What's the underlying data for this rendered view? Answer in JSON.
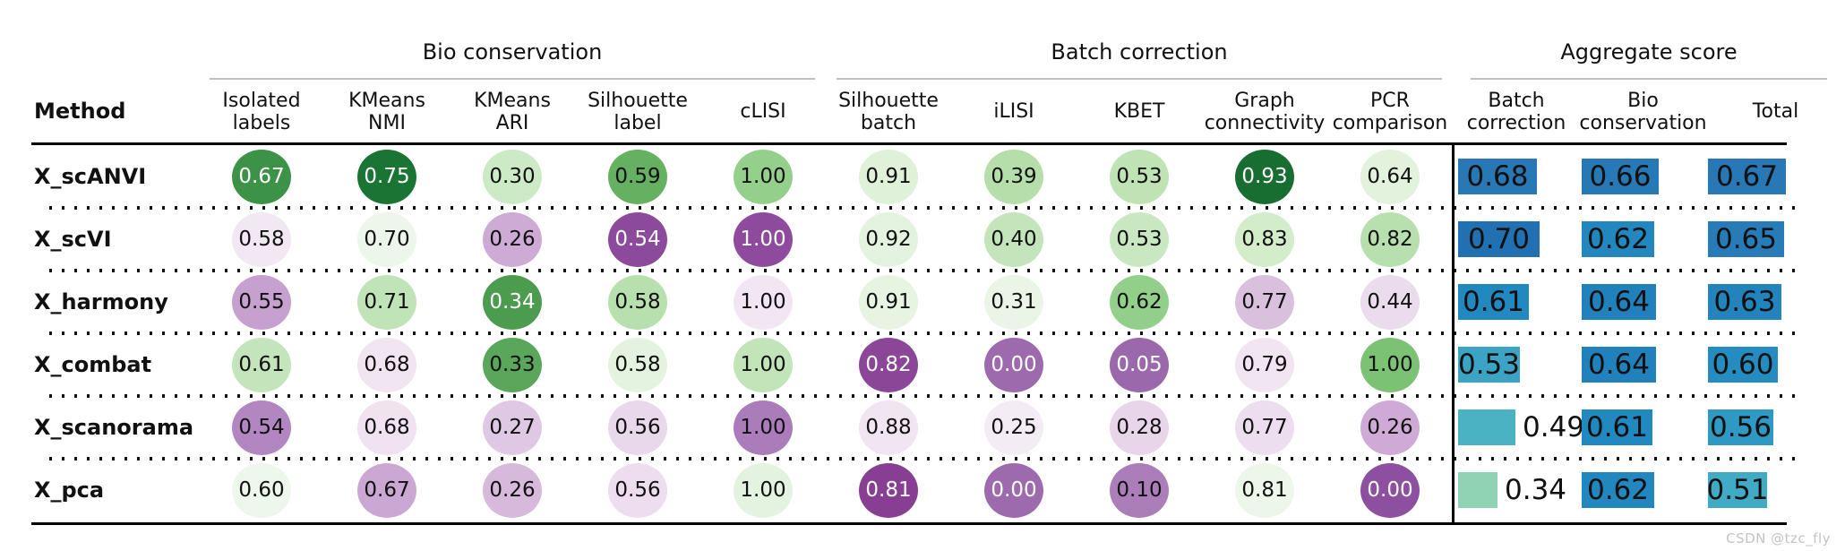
{
  "watermark": "CSDN @tzc_fly",
  "header": {
    "method": "Method",
    "group_labels": [
      "Bio conservation",
      "Batch correction",
      "Aggregate score"
    ],
    "metric_columns": [
      "Isolated\nlabels",
      "KMeans\nNMI",
      "KMeans\nARI",
      "Silhouette\nlabel",
      "cLISI",
      "Silhouette\nbatch",
      "iLISI",
      "KBET",
      "Graph\nconnectivity",
      "PCR\ncomparison"
    ],
    "aggregate_columns": [
      "Batch\ncorrection",
      "Bio\nconservation",
      "Total"
    ]
  },
  "chart_data": {
    "type": "table",
    "title": "scIB integration benchmark results",
    "column_groups": [
      {
        "label": "Bio conservation",
        "columns": [
          "Isolated labels",
          "KMeans NMI",
          "KMeans ARI",
          "Silhouette label",
          "cLISI"
        ]
      },
      {
        "label": "Batch correction",
        "columns": [
          "Silhouette batch",
          "iLISI",
          "KBET",
          "Graph connectivity",
          "PCR comparison"
        ]
      },
      {
        "label": "Aggregate score",
        "columns": [
          "Batch correction",
          "Bio conservation",
          "Total"
        ]
      }
    ],
    "methods": [
      "X_scANVI",
      "X_scVI",
      "X_harmony",
      "X_combat",
      "X_scanorama",
      "X_pca"
    ],
    "series": [
      {
        "method": "X_scANVI",
        "metrics": [
          0.67,
          0.75,
          0.3,
          0.59,
          1.0,
          0.91,
          0.39,
          0.53,
          0.93,
          0.64
        ],
        "aggregates": [
          0.68,
          0.66,
          0.67
        ]
      },
      {
        "method": "X_scVI",
        "metrics": [
          0.58,
          0.7,
          0.26,
          0.54,
          1.0,
          0.92,
          0.4,
          0.53,
          0.83,
          0.82
        ],
        "aggregates": [
          0.7,
          0.62,
          0.65
        ]
      },
      {
        "method": "X_harmony",
        "metrics": [
          0.55,
          0.71,
          0.34,
          0.58,
          1.0,
          0.91,
          0.31,
          0.62,
          0.77,
          0.44
        ],
        "aggregates": [
          0.61,
          0.64,
          0.63
        ]
      },
      {
        "method": "X_combat",
        "metrics": [
          0.61,
          0.68,
          0.33,
          0.58,
          1.0,
          0.82,
          0.0,
          0.05,
          0.79,
          1.0
        ],
        "aggregates": [
          0.53,
          0.64,
          0.6
        ]
      },
      {
        "method": "X_scanorama",
        "metrics": [
          0.54,
          0.68,
          0.27,
          0.56,
          1.0,
          0.88,
          0.25,
          0.28,
          0.77,
          0.26
        ],
        "aggregates": [
          0.49,
          0.61,
          0.56
        ]
      },
      {
        "method": "X_pca",
        "metrics": [
          0.6,
          0.67,
          0.26,
          0.56,
          1.0,
          0.81,
          0.0,
          0.1,
          0.81,
          0.0
        ],
        "aggregates": [
          0.34,
          0.62,
          0.51
        ]
      }
    ]
  },
  "styles": {
    "circle_colors": [
      [
        "#3c9347",
        "#1a7534",
        "#cdeac6",
        "#66b061",
        "#94d08c",
        "#e0f1da",
        "#b5deab",
        "#bfe3b5",
        "#186e31",
        "#e2f2dc"
      ],
      [
        "#f2e8f3",
        "#edf6ea",
        "#cdabd4",
        "#8c4a9c",
        "#8e4b9e",
        "#e4f3df",
        "#c4e5bb",
        "#c9e7c0",
        "#d3ecca",
        "#b7e0ae"
      ],
      [
        "#c6a0cf",
        "#c0e3b7",
        "#4c9c50",
        "#b7e0ae",
        "#f1e6f2",
        "#e7f4e2",
        "#ebf5e7",
        "#92cf8a",
        "#d9c1de",
        "#eadcec"
      ],
      [
        "#c4e5bb",
        "#f1e5f2",
        "#5aa75c",
        "#e4f3df",
        "#c2e4b9",
        "#8b4697",
        "#9c6aad",
        "#9b68ab",
        "#f1e5f2",
        "#7cc275"
      ],
      [
        "#b286c1",
        "#f0e2f1",
        "#dfc8e3",
        "#e9d7eb",
        "#aa7cba",
        "#f1e5f2",
        "#f4ecf5",
        "#e8d5ea",
        "#ecdeee",
        "#cfaad6"
      ],
      [
        "#eef7eb",
        "#cba8d3",
        "#d7b9dc",
        "#eeddef",
        "#e4f3df",
        "#873e93",
        "#9c6aad",
        "#ab7eba",
        "#ecf6e9",
        "#8d4f9f"
      ]
    ],
    "circle_text_colors": [
      [
        "#ffffff",
        "#ffffff",
        "#111111",
        "#111111",
        "#111111",
        "#111111",
        "#111111",
        "#111111",
        "#ffffff",
        "#111111"
      ],
      [
        "#111111",
        "#111111",
        "#111111",
        "#ffffff",
        "#ffffff",
        "#111111",
        "#111111",
        "#111111",
        "#111111",
        "#111111"
      ],
      [
        "#111111",
        "#111111",
        "#ffffff",
        "#111111",
        "#111111",
        "#111111",
        "#111111",
        "#111111",
        "#111111",
        "#111111"
      ],
      [
        "#111111",
        "#111111",
        "#111111",
        "#111111",
        "#111111",
        "#ffffff",
        "#ffffff",
        "#ffffff",
        "#111111",
        "#111111"
      ],
      [
        "#111111",
        "#111111",
        "#111111",
        "#111111",
        "#111111",
        "#111111",
        "#111111",
        "#111111",
        "#111111",
        "#111111"
      ],
      [
        "#111111",
        "#111111",
        "#111111",
        "#111111",
        "#111111",
        "#ffffff",
        "#ffffff",
        "#111111",
        "#111111",
        "#ffffff"
      ]
    ],
    "bar_colors": [
      [
        "#2778b5",
        "#2779b6",
        "#2778b5"
      ],
      [
        "#2171b2",
        "#2286bf",
        "#277cb8"
      ],
      [
        "#2289c0",
        "#2181bc",
        "#2283bd"
      ],
      [
        "#3ba4c5",
        "#2181bc",
        "#248cc0"
      ],
      [
        "#4bb2c3",
        "#2289c0",
        "#2f99c3"
      ],
      [
        "#90d3b4",
        "#2286bf",
        "#41abc5"
      ]
    ],
    "bar_label_pos": [
      [
        "in",
        "in",
        "in"
      ],
      [
        "in",
        "in",
        "in"
      ],
      [
        "in",
        "in",
        "in"
      ],
      [
        "in",
        "in",
        "in"
      ],
      [
        "out",
        "in",
        "in"
      ],
      [
        "out",
        "in",
        "in"
      ]
    ]
  }
}
